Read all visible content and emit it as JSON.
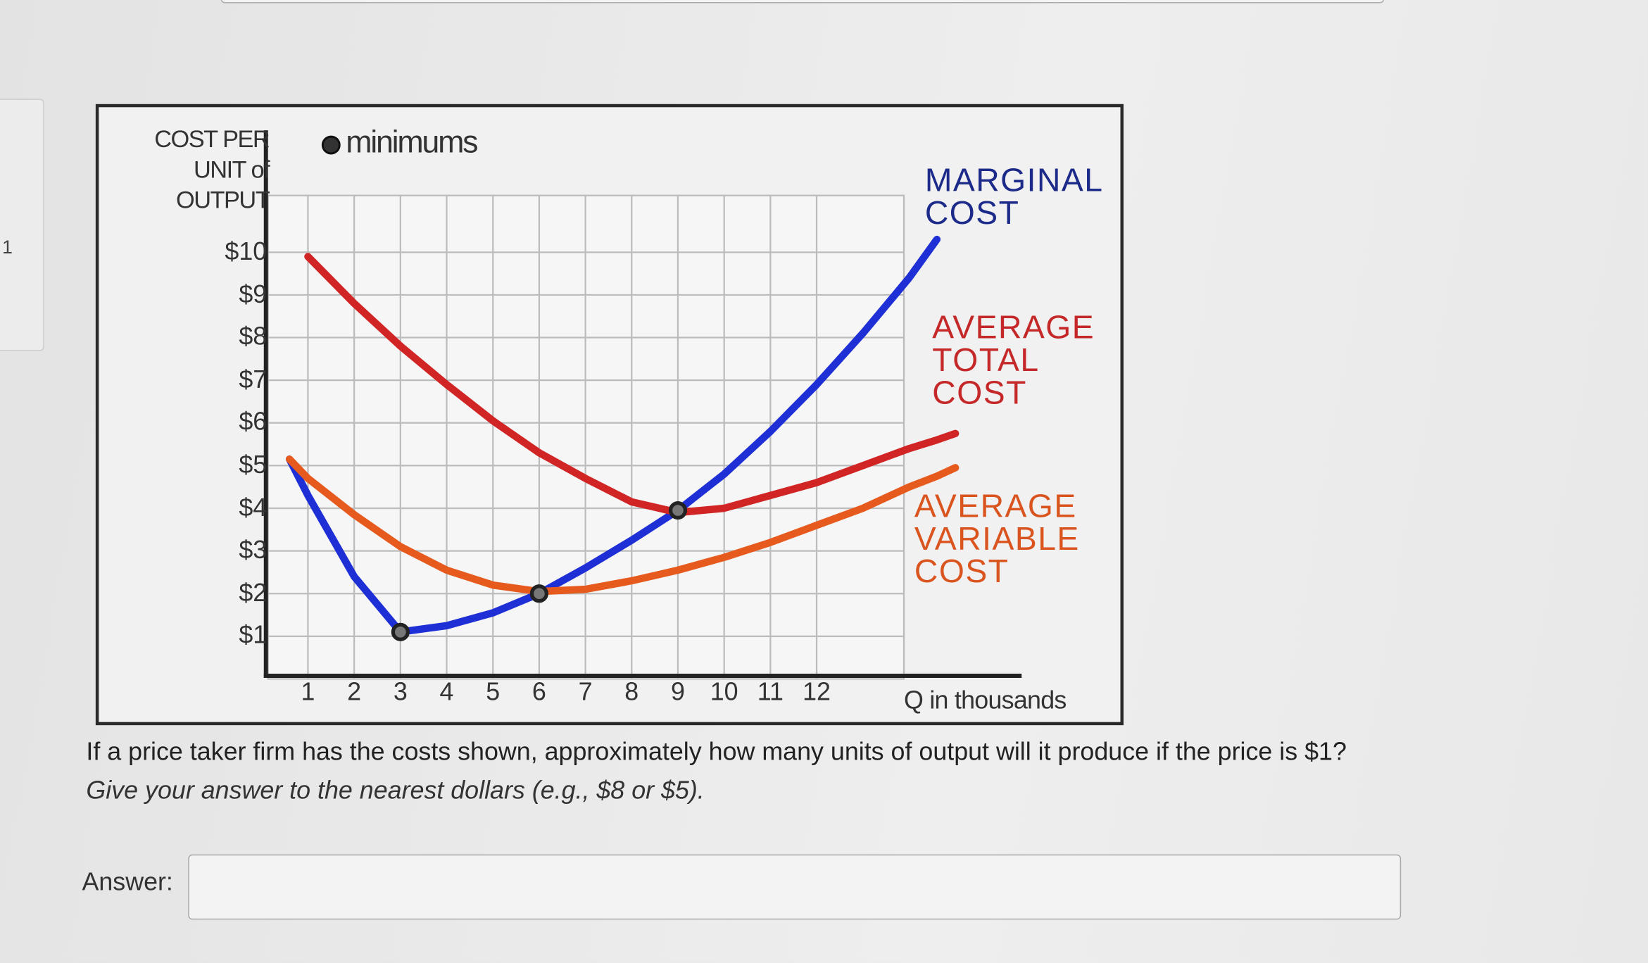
{
  "question_number": "1",
  "chart_data": {
    "type": "line",
    "y_label": "COST PER UNIT of OUTPUT",
    "x_label": "Q in thousands",
    "x": [
      0.6,
      1,
      2,
      3,
      4,
      5,
      6,
      7,
      8,
      9,
      10,
      11,
      12,
      13,
      14,
      14.6,
      15
    ],
    "series": [
      {
        "name": "MARGINAL COST",
        "color": "#1f2fd6",
        "label_color": "#1c2a8a",
        "values": [
          5.15,
          4.3,
          2.4,
          1.1,
          1.25,
          1.55,
          2.0,
          2.6,
          3.25,
          3.95,
          4.8,
          5.8,
          6.9,
          8.1,
          9.4,
          10.3,
          null
        ]
      },
      {
        "name": "AVERAGE TOTAL COST",
        "color": "#d12525",
        "label_color": "#c42828",
        "values": [
          null,
          9.9,
          8.8,
          7.8,
          6.9,
          6.05,
          5.3,
          4.7,
          4.15,
          3.9,
          4.0,
          4.3,
          4.6,
          5.0,
          5.4,
          5.6,
          5.75
        ]
      },
      {
        "name": "AVERAGE VARIABLE COST",
        "color": "#e65a1e",
        "label_color": "#d9541e",
        "values": [
          5.15,
          4.7,
          3.85,
          3.1,
          2.55,
          2.2,
          2.05,
          2.1,
          2.3,
          2.55,
          2.85,
          3.2,
          3.6,
          4.0,
          4.5,
          4.75,
          4.95
        ]
      }
    ],
    "markers": {
      "name": "minimums",
      "x": [
        3,
        6,
        9
      ],
      "y": [
        1.1,
        2.0,
        3.95
      ]
    },
    "xlim": [
      0,
      16.4
    ],
    "ylim": [
      0,
      11.4
    ],
    "xticks": [
      1,
      2,
      3,
      4,
      5,
      6,
      7,
      8,
      9,
      10,
      11,
      12
    ],
    "yticks": [
      {
        "value": 1,
        "label": "$1"
      },
      {
        "value": 2,
        "label": "$2"
      },
      {
        "value": 3,
        "label": "$3"
      },
      {
        "value": 4,
        "label": "$4"
      },
      {
        "value": 5,
        "label": "$5"
      },
      {
        "value": 6,
        "label": "$6"
      },
      {
        "value": 7,
        "label": "$7"
      },
      {
        "value": 8,
        "label": "$8"
      },
      {
        "value": 9,
        "label": "$9"
      },
      {
        "value": 10,
        "label": "$10"
      }
    ],
    "grid": true
  },
  "question": {
    "text": "If a price taker firm has the costs shown, approximately how many units of output will it produce if the price is $1?",
    "hint": "Give your answer to the nearest dollars (e.g., $8 or $5).",
    "answer_label": "Answer:"
  }
}
